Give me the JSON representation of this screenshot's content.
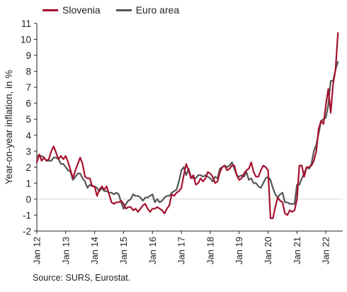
{
  "chart_data": {
    "type": "line",
    "ylabel": "Year-on-year inflation, in %",
    "xlabel": "",
    "ylim": [
      -2,
      11
    ],
    "yticks": [
      -2,
      -1,
      0,
      1,
      2,
      3,
      4,
      5,
      6,
      7,
      8,
      9,
      10,
      11
    ],
    "xlim": [
      0,
      127
    ],
    "xticks": [
      {
        "label": "Jan 12",
        "index": 0
      },
      {
        "label": "Jan 13",
        "index": 12
      },
      {
        "label": "Jan 14",
        "index": 24
      },
      {
        "label": "Jan 15",
        "index": 36
      },
      {
        "label": "Jan 16",
        "index": 48
      },
      {
        "label": "Jan 17",
        "index": 60
      },
      {
        "label": "Jan 18",
        "index": 72
      },
      {
        "label": "Jan 19",
        "index": 84
      },
      {
        "label": "Jan 20",
        "index": 96
      },
      {
        "label": "Jan 21",
        "index": 108
      },
      {
        "label": "Jan 22",
        "index": 120
      }
    ],
    "grid": false,
    "legend_position": "top",
    "x_start": "Jan 2012",
    "frequency": "monthly",
    "series": [
      {
        "name": "Slovenia",
        "color": "#a5112e",
        "values": [
          2.3,
          2.8,
          2.4,
          2.6,
          2.4,
          2.5,
          3.0,
          3.3,
          2.9,
          2.5,
          2.7,
          2.5,
          2.7,
          2.3,
          1.8,
          1.3,
          1.8,
          2.2,
          2.6,
          2.2,
          1.4,
          1.3,
          1.3,
          0.8,
          0.8,
          0.2,
          0.6,
          0.8,
          0.6,
          0.8,
          0.3,
          -0.2,
          -0.3,
          -0.2,
          -0.2,
          -0.1,
          -0.3,
          -0.6,
          -0.5,
          -0.5,
          -0.7,
          -0.6,
          -0.8,
          -0.6,
          -0.4,
          -0.3,
          -0.6,
          -0.8,
          -0.6,
          -0.6,
          -0.5,
          -0.6,
          -0.7,
          -0.9,
          -0.6,
          -0.4,
          0.3,
          0.2,
          0.4,
          0.5,
          0.7,
          1.5,
          2.2,
          1.8,
          1.3,
          1.5,
          0.9,
          1.0,
          1.3,
          1.1,
          1.3,
          1.7,
          1.6,
          1.4,
          1.0,
          1.1,
          1.7,
          2.0,
          2.1,
          1.8,
          1.9,
          2.1,
          2.1,
          1.5,
          1.2,
          1.3,
          1.6,
          1.8,
          1.9,
          2.3,
          1.7,
          1.4,
          1.4,
          1.8,
          2.1,
          2.0,
          1.8,
          -1.2,
          -1.2,
          -0.5,
          0.1,
          -0.1,
          -0.2,
          -0.9,
          -1.0,
          -0.7,
          -0.8,
          -0.7,
          0.0,
          2.1,
          2.1,
          1.4,
          2.0,
          2.0,
          2.1,
          2.4,
          3.0,
          4.4,
          4.9,
          4.7,
          5.9,
          6.9,
          5.4,
          7.2,
          8.1,
          10.4
        ]
      },
      {
        "name": "Euro area",
        "color": "#555555",
        "values": [
          2.7,
          2.7,
          2.7,
          2.6,
          2.4,
          2.4,
          2.4,
          2.6,
          2.6,
          2.5,
          2.2,
          2.2,
          2.0,
          1.8,
          1.7,
          1.2,
          1.4,
          1.6,
          1.6,
          1.3,
          1.1,
          0.7,
          0.9,
          0.8,
          0.8,
          0.7,
          0.5,
          0.7,
          0.5,
          0.5,
          0.4,
          0.4,
          0.3,
          0.4,
          0.3,
          -0.2,
          -0.6,
          -0.3,
          -0.1,
          0.0,
          0.3,
          0.2,
          0.2,
          0.1,
          -0.1,
          0.1,
          0.1,
          0.2,
          0.3,
          -0.2,
          0.0,
          -0.2,
          -0.1,
          0.1,
          0.2,
          0.2,
          0.4,
          0.5,
          0.6,
          1.1,
          1.8,
          2.0,
          1.5,
          1.9,
          1.4,
          1.3,
          1.3,
          1.5,
          1.5,
          1.4,
          1.5,
          1.4,
          1.3,
          1.1,
          1.4,
          1.3,
          1.9,
          2.0,
          2.1,
          2.0,
          2.1,
          2.3,
          1.9,
          1.5,
          1.4,
          1.5,
          1.4,
          1.7,
          1.2,
          1.3,
          1.0,
          1.0,
          0.8,
          0.7,
          1.0,
          1.3,
          1.4,
          1.2,
          0.7,
          0.3,
          0.1,
          0.3,
          0.4,
          -0.2,
          -0.2,
          -0.3,
          -0.3,
          -0.3,
          0.9,
          0.9,
          1.3,
          1.6,
          2.0,
          1.9,
          2.2,
          3.0,
          3.4,
          4.1,
          4.9,
          5.0,
          5.1,
          5.9,
          7.4,
          7.4,
          8.1,
          8.6
        ]
      }
    ]
  },
  "legend": {
    "items": [
      {
        "label": "Slovenia",
        "color": "#a5112e"
      },
      {
        "label": "Euro area",
        "color": "#555555"
      }
    ]
  },
  "source": "Source: SURS, Eurostat."
}
